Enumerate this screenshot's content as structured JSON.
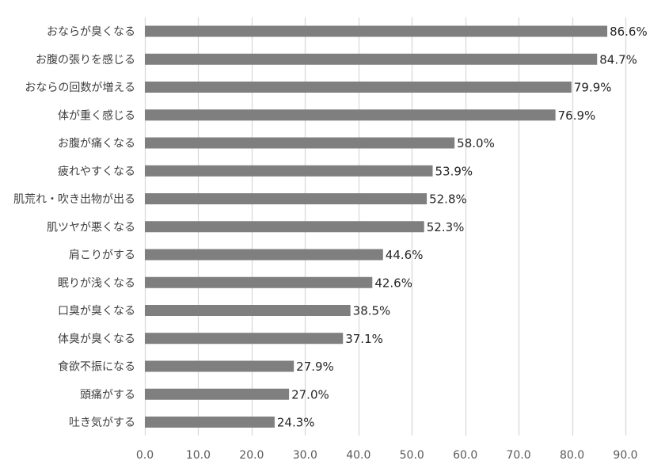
{
  "chart_data": {
    "type": "bar",
    "orientation": "horizontal",
    "categories": [
      "おならが臭くなる",
      "お腹の張りを感じる",
      "おならの回数が増える",
      "体が重く感じる",
      "お腹が痛くなる",
      "疲れやすくなる",
      "肌荒れ・吹き出物が出る",
      "肌ツヤが悪くなる",
      "肩こりがする",
      "眠りが浅くなる",
      "口臭が臭くなる",
      "体臭が臭くなる",
      "食欲不振になる",
      "頭痛がする",
      "吐き気がする"
    ],
    "values": [
      86.6,
      84.7,
      79.9,
      76.9,
      58.0,
      53.9,
      52.8,
      52.3,
      44.6,
      42.6,
      38.5,
      37.1,
      27.9,
      27.0,
      24.3
    ],
    "value_labels": [
      "86.6%",
      "84.7%",
      "79.9%",
      "76.9%",
      "58.0%",
      "53.9%",
      "52.8%",
      "52.3%",
      "44.6%",
      "42.6%",
      "38.5%",
      "37.1%",
      "27.9%",
      "27.0%",
      "24.3%"
    ],
    "x_ticks": [
      "0.0",
      "10.0",
      "20.0",
      "30.0",
      "40.0",
      "50.0",
      "60.0",
      "70.0",
      "80.0",
      "90.0"
    ],
    "xlim": [
      0,
      90
    ],
    "title": "",
    "xlabel": "",
    "ylabel": "",
    "grid": "vertical",
    "legend": "none",
    "colors": {
      "bar": "#7f7f7f",
      "grid": "#d9d9d9",
      "category_text": "#404040",
      "tick_text": "#595959",
      "value_text": "#262626"
    }
  }
}
